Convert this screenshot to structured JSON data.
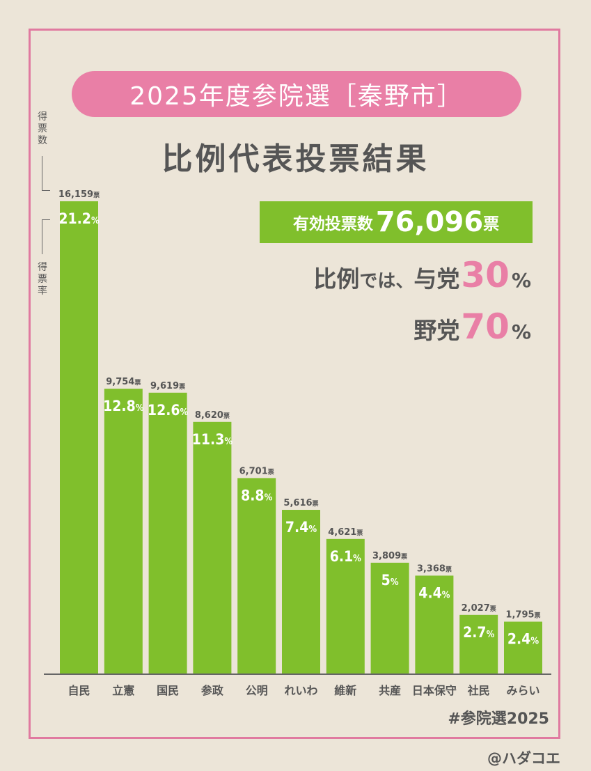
{
  "title": "2025年度参院選［秦野市］",
  "subtitle": "比例代表投票結果",
  "axis_labels": {
    "votes": "得票数",
    "rate": "得票率"
  },
  "valid_votes": {
    "label": "有効投票数",
    "value": "76,096",
    "unit": "票"
  },
  "summary": {
    "line1_prefix": "比例",
    "line1_mid": "では、",
    "line1_party": "与党",
    "line1_value": "30",
    "line2_party": "野党",
    "line2_value": "70",
    "pct_sign": "%"
  },
  "chart_data": {
    "type": "bar",
    "categories": [
      "自民",
      "立憲",
      "国民",
      "参政",
      "公明",
      "れいわ",
      "維新",
      "共産",
      "日本保守",
      "社民",
      "みらい"
    ],
    "series": [
      {
        "values": [
          16159,
          9754,
          9619,
          8620,
          6701,
          5616,
          4621,
          3809,
          3368,
          2027,
          1795
        ]
      }
    ],
    "vote_labels": [
      "16,159",
      "9,754",
      "9,619",
      "8,620",
      "6,701",
      "5,616",
      "4,621",
      "3,809",
      "3,368",
      "2,027",
      "1,795"
    ],
    "vote_unit": "票",
    "rates": [
      "21.2",
      "12.8",
      "12.6",
      "11.3",
      "8.8",
      "7.4",
      "6.1",
      "5",
      "4.4",
      "2.7",
      "2.4"
    ],
    "rate_unit": "%",
    "ylim": [
      0,
      16159
    ]
  },
  "colors": {
    "bar": "#80bf2c",
    "pink": "#e97fa6",
    "text": "#555555",
    "frame": "#e07aa0"
  },
  "hashtag": "#参院選2025",
  "credit": "@ハダコエ"
}
